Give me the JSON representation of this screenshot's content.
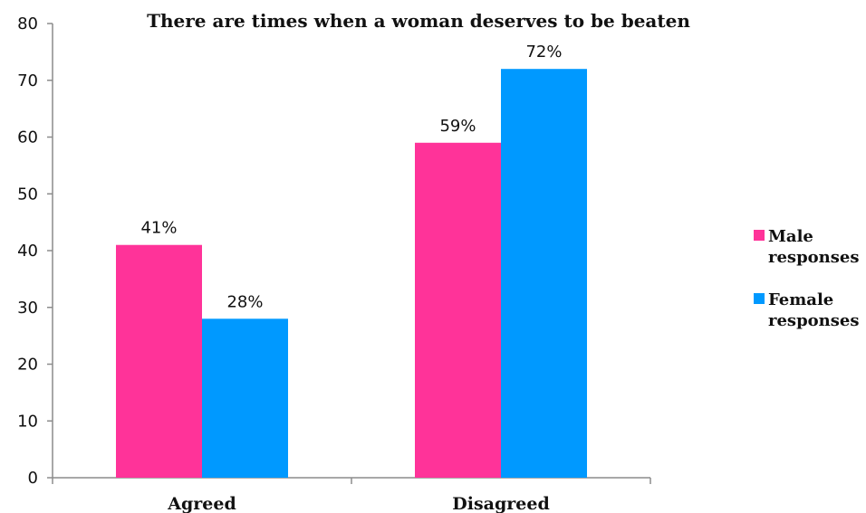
{
  "chart_data": {
    "type": "bar",
    "title": "There are times when a woman deserves to be beaten",
    "xlabel": "",
    "ylabel": "",
    "categories": [
      "Agreed",
      "Disagreed"
    ],
    "ylim": [
      0,
      80
    ],
    "yticks": [
      0,
      10,
      20,
      30,
      40,
      50,
      60,
      70,
      80
    ],
    "grid": false,
    "legend_position": "right",
    "series": [
      {
        "name": "Male responses",
        "legend_lines": [
          "Male",
          "responses"
        ],
        "color": "#ff3399",
        "values": [
          41,
          59
        ],
        "labels": [
          "41%",
          "59%"
        ]
      },
      {
        "name": "Female responses",
        "legend_lines": [
          "Female",
          "responses"
        ],
        "color": "#0099ff",
        "values": [
          28,
          72
        ],
        "labels": [
          "28%",
          "72%"
        ]
      }
    ]
  }
}
